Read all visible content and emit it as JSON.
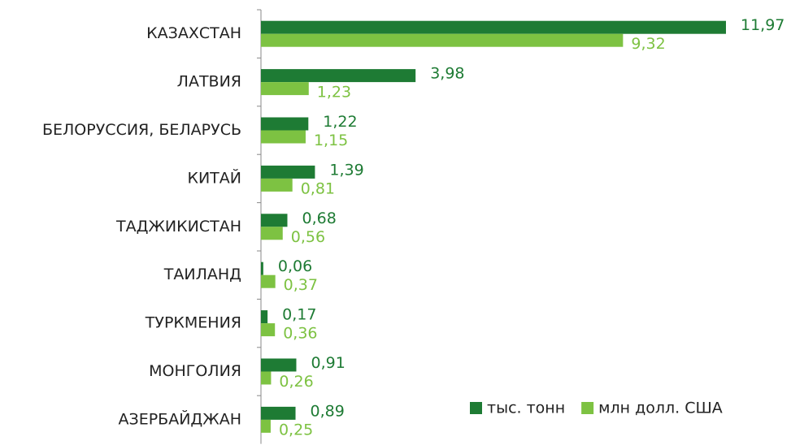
{
  "chart_data": {
    "type": "bar",
    "orientation": "horizontal",
    "categories": [
      "КАЗАХСТАН",
      "ЛАТВИЯ",
      "БЕЛОРУССИЯ, БЕЛАРУСЬ",
      "КИТАЙ",
      "ТАДЖИКИСТАН",
      "ТАИЛАНД",
      "ТУРКМЕНИЯ",
      "МОНГОЛИЯ",
      "АЗЕРБАЙДЖАН"
    ],
    "series": [
      {
        "name": "тыс. тонн",
        "color": "#1e7b34",
        "values": [
          11.97,
          3.98,
          1.22,
          1.39,
          0.68,
          0.06,
          0.17,
          0.91,
          0.89
        ],
        "value_labels": [
          "11,97",
          "3,98",
          "1,22",
          "1,39",
          "0,68",
          "0,06",
          "0,17",
          "0,91",
          "0,89"
        ]
      },
      {
        "name": "млн долл. США",
        "color": "#7dc242",
        "values": [
          9.32,
          1.23,
          1.15,
          0.81,
          0.56,
          0.37,
          0.36,
          0.26,
          0.25
        ],
        "value_labels": [
          "9,32",
          "1,23",
          "1,15",
          "0,81",
          "0,56",
          "0,37",
          "0,36",
          "0,26",
          "0,25"
        ]
      }
    ],
    "legend": "bottom-right"
  }
}
